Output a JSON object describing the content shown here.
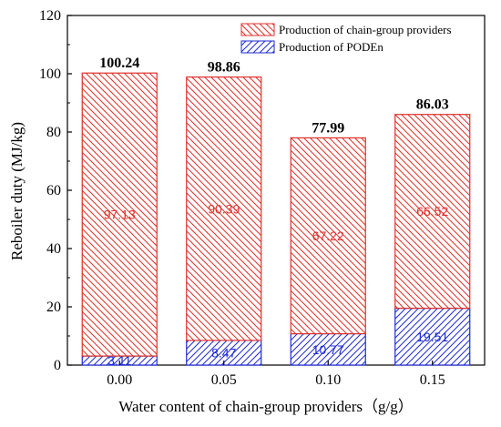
{
  "chart_data": {
    "type": "bar",
    "stacked": true,
    "categories": [
      "0.00",
      "0.05",
      "0.10",
      "0.15"
    ],
    "series": [
      {
        "name": "Production of PODEn",
        "values": [
          3.11,
          8.47,
          10.77,
          19.51
        ],
        "labels": [
          "3.11",
          "8.47",
          "10.77",
          "19.51"
        ],
        "color": "#1f2bd6",
        "pattern": "hatch-forward"
      },
      {
        "name": "Production of chain-group providers",
        "values": [
          97.13,
          90.39,
          67.22,
          66.52
        ],
        "labels": [
          "97.13",
          "90.39",
          "67.22",
          "66.52"
        ],
        "color": "#e0302b",
        "pattern": "hatch-backward"
      }
    ],
    "totals": [
      100.24,
      98.86,
      77.99,
      86.03
    ],
    "total_labels": [
      "100.24",
      "98.86",
      "77.99",
      "86.03"
    ],
    "xlabel": "Water content of chain-group providers（g/g）",
    "ylabel": "Reboiler duty (MJ/kg)",
    "ylim": [
      0,
      120
    ],
    "yticks": [
      0,
      20,
      40,
      60,
      80,
      100,
      120
    ],
    "ytick_labels": [
      "0",
      "20",
      "40",
      "60",
      "80",
      "100",
      "120"
    ],
    "legend_position": "top-right",
    "grid": false
  }
}
